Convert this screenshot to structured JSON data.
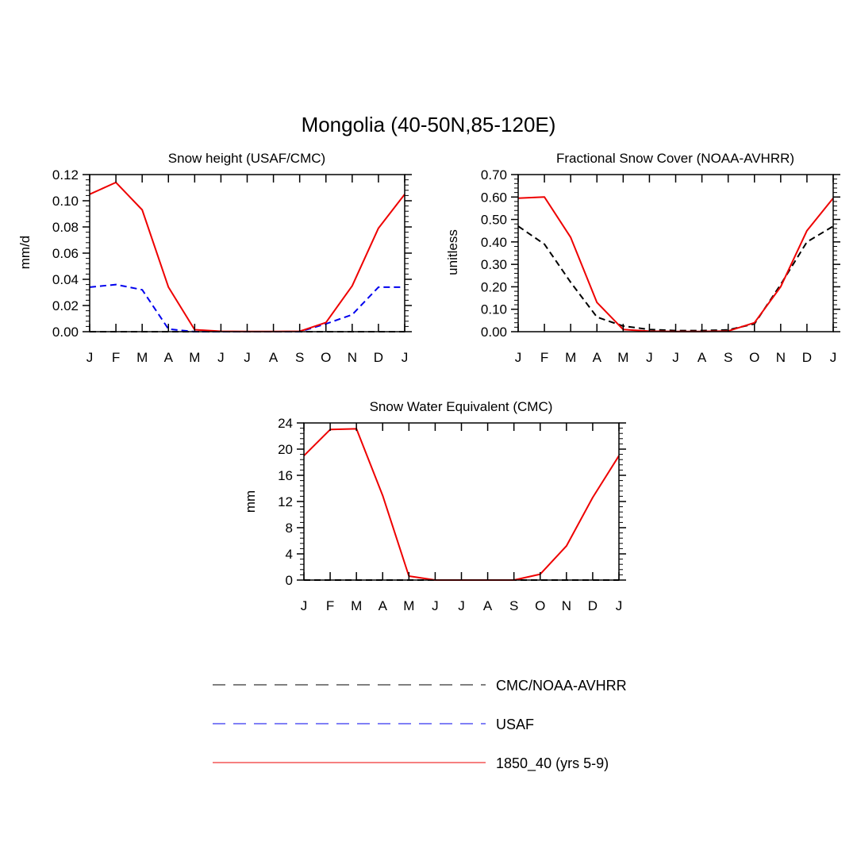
{
  "figure": {
    "title": "Mongolia (40-50N,85-120E)"
  },
  "colors": {
    "cmc_noaa": "#000000",
    "usaf": "#0000ee",
    "model": "#ee0000"
  },
  "legend": {
    "placement": "bottom-center",
    "entries": [
      {
        "label": "CMC/NOAA-AVHRR",
        "color": "#000000",
        "style": "dashed"
      },
      {
        "label": "USAF",
        "color": "#0000ee",
        "style": "dashed"
      },
      {
        "label": "1850_40 (yrs 5-9)",
        "color": "#ee0000",
        "style": "solid"
      }
    ]
  },
  "chart_data": [
    {
      "type": "line",
      "title": "Snow height (USAF/CMC)",
      "xlabel": "",
      "ylabel": "mm/d",
      "categories": [
        "J",
        "F",
        "M",
        "A",
        "M",
        "J",
        "J",
        "A",
        "S",
        "O",
        "N",
        "D",
        "J"
      ],
      "ylim": [
        0,
        0.12
      ],
      "yticks": [
        "0.00",
        "0.02",
        "0.04",
        "0.06",
        "0.08",
        "0.10",
        "0.12"
      ],
      "grid": false,
      "series": [
        {
          "name": "CMC/NOAA-AVHRR",
          "style": "dashed",
          "color": "#000000",
          "values": [
            0,
            0,
            0,
            0,
            0,
            0,
            0,
            0,
            0,
            0,
            0,
            0,
            0
          ]
        },
        {
          "name": "USAF",
          "style": "dashed",
          "color": "#0000ee",
          "values": [
            0.034,
            0.036,
            0.032,
            0.002,
            0.0,
            0.0,
            0.0,
            0.0,
            0.0,
            0.006,
            0.013,
            0.034,
            0.034
          ]
        },
        {
          "name": "1850_40 (yrs 5-9)",
          "style": "solid",
          "color": "#ee0000",
          "values": [
            0.105,
            0.114,
            0.093,
            0.034,
            0.0015,
            0.0003,
            0.0002,
            0.0002,
            0.0003,
            0.007,
            0.035,
            0.079,
            0.105
          ]
        }
      ]
    },
    {
      "type": "line",
      "title": "Fractional Snow Cover (NOAA-AVHRR)",
      "xlabel": "",
      "ylabel": "unitless",
      "categories": [
        "J",
        "F",
        "M",
        "A",
        "M",
        "J",
        "J",
        "A",
        "S",
        "O",
        "N",
        "D",
        "J"
      ],
      "ylim": [
        0,
        0.7
      ],
      "yticks": [
        "0.00",
        "0.10",
        "0.20",
        "0.30",
        "0.40",
        "0.50",
        "0.60",
        "0.70"
      ],
      "grid": false,
      "series": [
        {
          "name": "CMC/NOAA-AVHRR",
          "style": "dashed",
          "color": "#000000",
          "values": [
            0.47,
            0.39,
            0.22,
            0.065,
            0.025,
            0.01,
            0.005,
            0.005,
            0.008,
            0.035,
            0.21,
            0.4,
            0.47
          ]
        },
        {
          "name": "1850_40 (yrs 5-9)",
          "style": "solid",
          "color": "#ee0000",
          "values": [
            0.595,
            0.6,
            0.42,
            0.13,
            0.01,
            0.002,
            0.001,
            0.001,
            0.003,
            0.04,
            0.2,
            0.45,
            0.595
          ]
        }
      ]
    },
    {
      "type": "line",
      "title": "Snow Water Equivalent (CMC)",
      "xlabel": "",
      "ylabel": "mm",
      "categories": [
        "J",
        "F",
        "M",
        "A",
        "M",
        "J",
        "J",
        "A",
        "S",
        "O",
        "N",
        "D",
        "J"
      ],
      "ylim": [
        0,
        24
      ],
      "yticks": [
        "0",
        "4",
        "8",
        "12",
        "16",
        "20",
        "24"
      ],
      "grid": false,
      "series": [
        {
          "name": "CMC/NOAA-AVHRR",
          "style": "dashed",
          "color": "#000000",
          "values": [
            0,
            0,
            0,
            0,
            0,
            0,
            0,
            0,
            0,
            0,
            0,
            0,
            0
          ]
        },
        {
          "name": "1850_40 (yrs 5-9)",
          "style": "solid",
          "color": "#ee0000",
          "values": [
            19.0,
            23.0,
            23.1,
            12.9,
            0.6,
            0.0,
            0.0,
            0.0,
            0.0,
            0.9,
            5.2,
            12.6,
            19.0
          ]
        }
      ]
    }
  ]
}
